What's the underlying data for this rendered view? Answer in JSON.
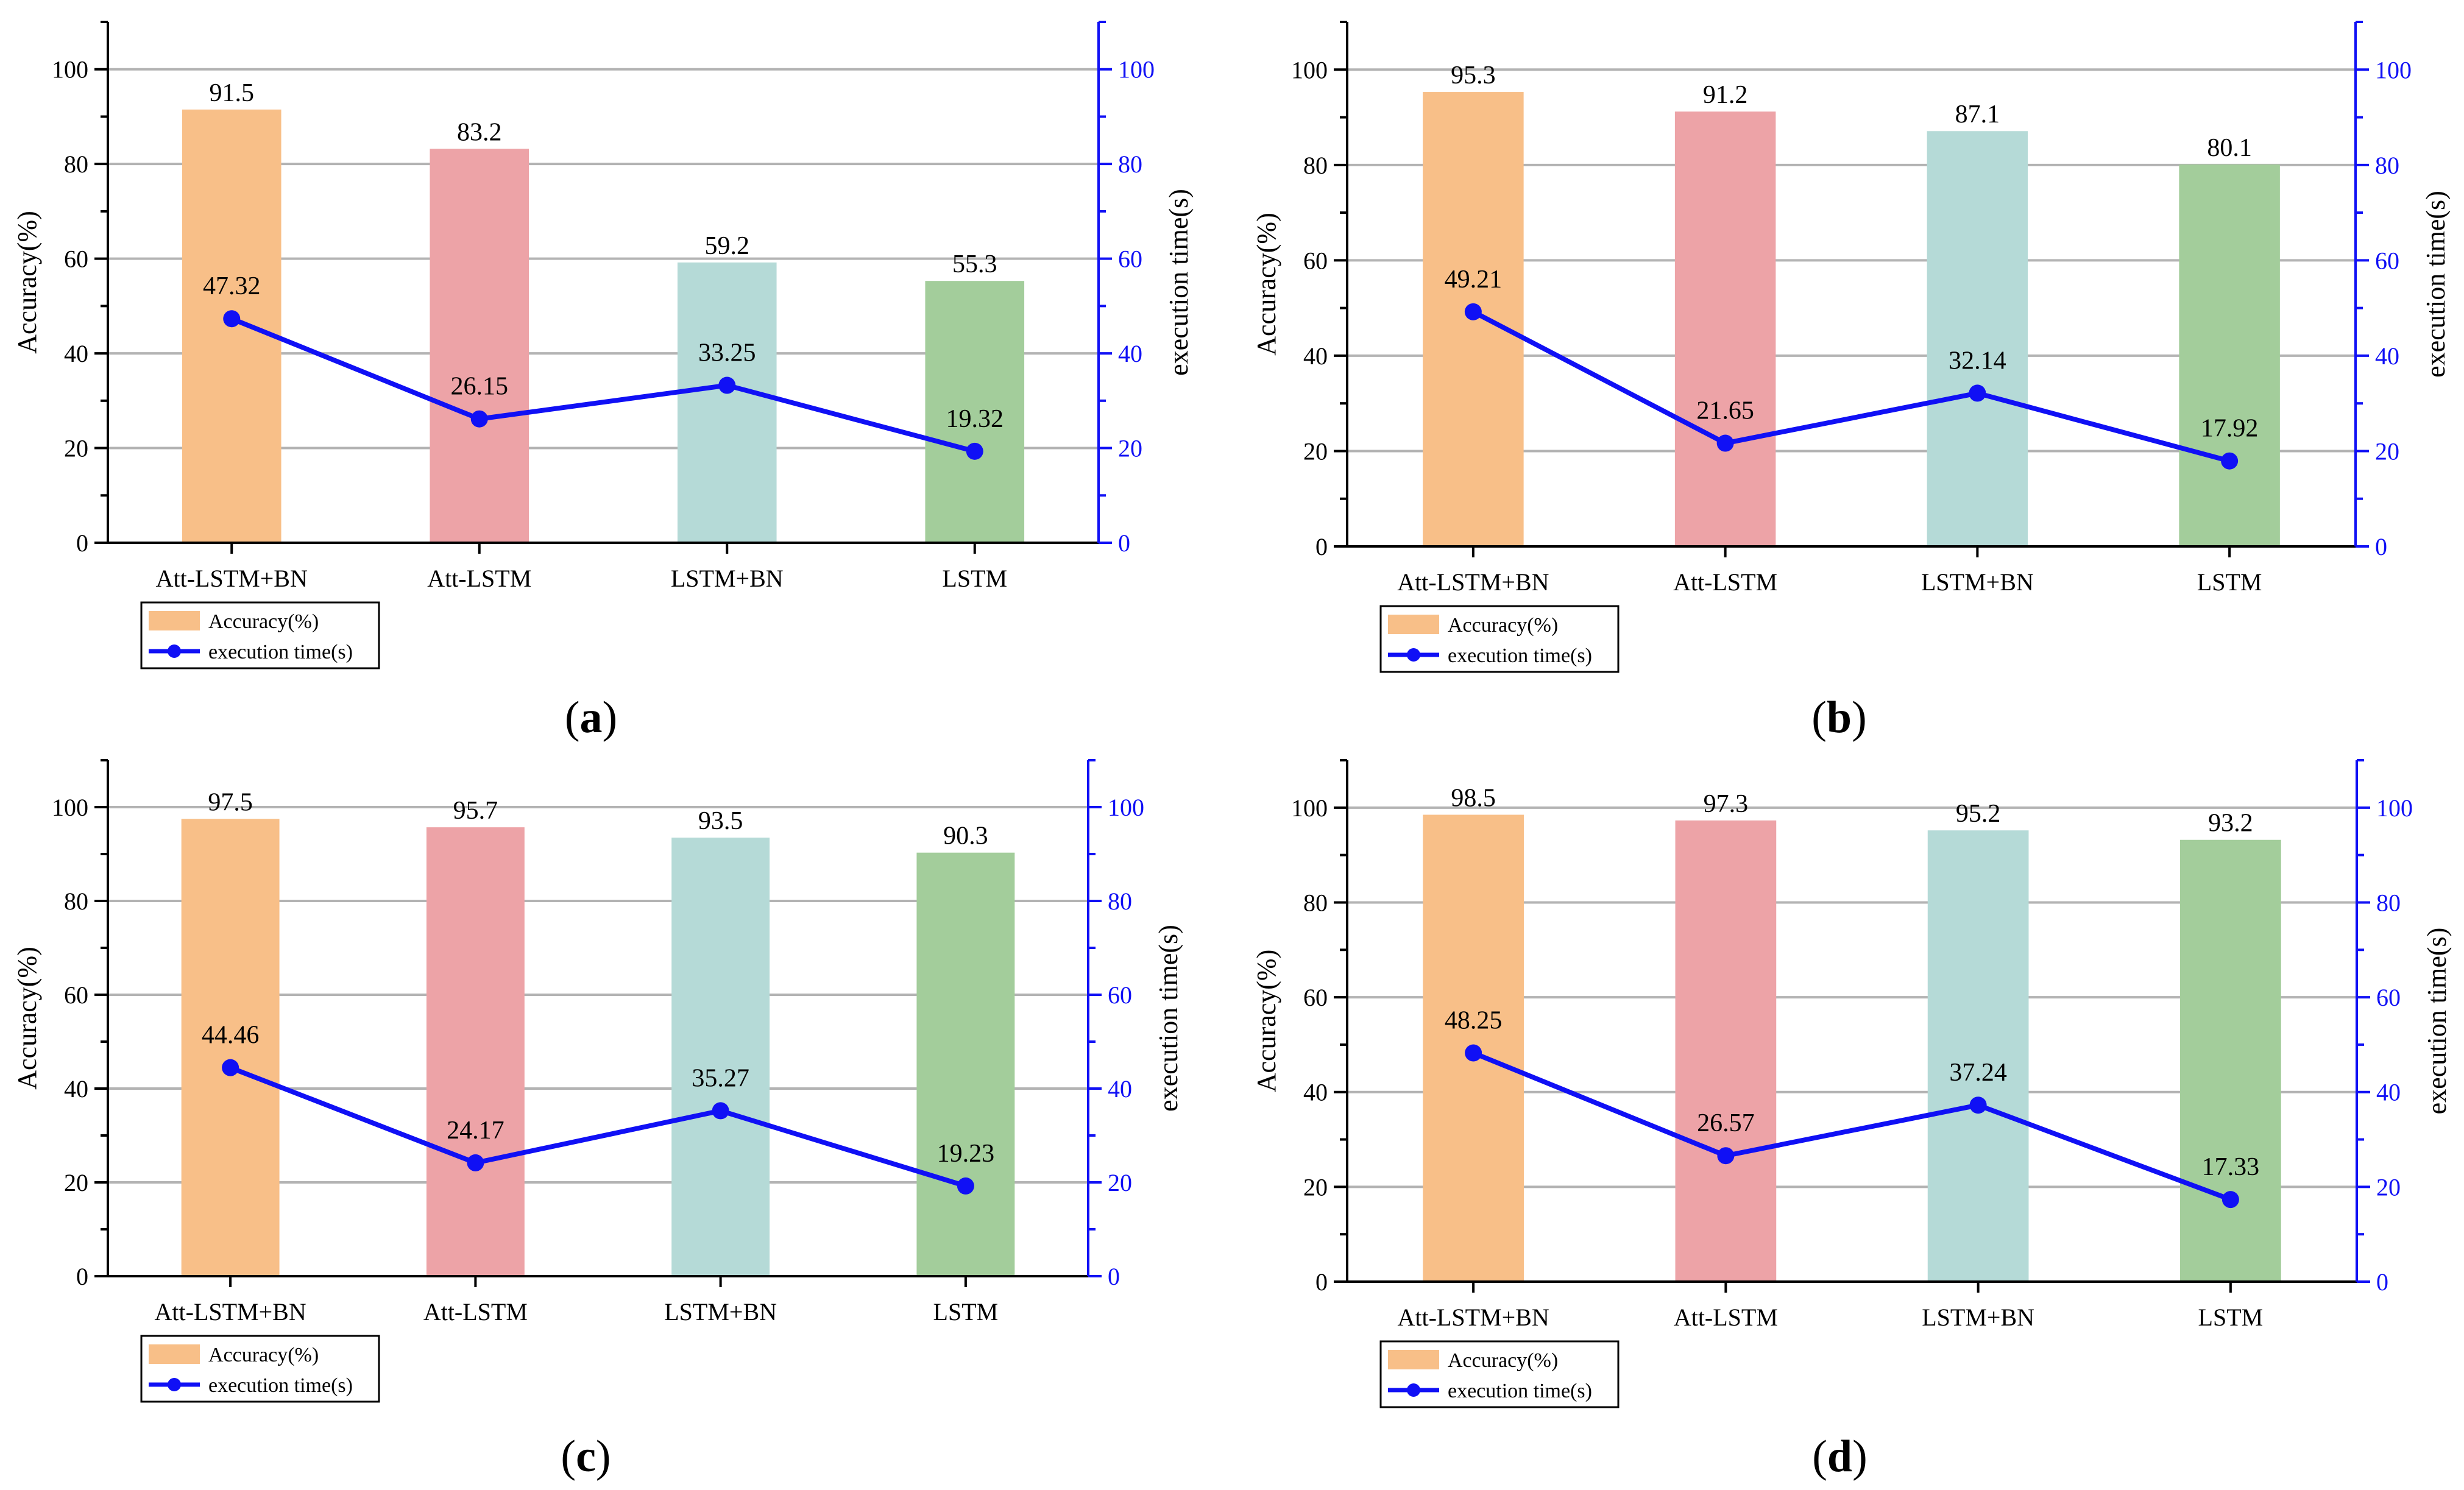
{
  "colors": {
    "bars": [
      "#f8bf88",
      "#eda3a7",
      "#b5dad7",
      "#a3cd9b"
    ],
    "line": "#1010f5",
    "right_axis": "#1010f5",
    "grid": "#b3b3b3"
  },
  "legend": {
    "accuracy": "Accuracy(%)",
    "execution": "execution time(s)"
  },
  "chart_data": [
    {
      "type": "bar",
      "panel": "(a)",
      "panel_open": "(",
      "panel_letter": "a",
      "panel_close": ")",
      "categories": [
        "Att-LSTM+BN",
        "Att-LSTM",
        "LSTM+BN",
        "LSTM"
      ],
      "series": [
        {
          "name": "Accuracy(%)",
          "axis": "left",
          "type": "bar",
          "values": [
            91.5,
            83.2,
            59.2,
            55.3
          ],
          "labels": [
            "91.5",
            "83.2",
            "59.2",
            "55.3"
          ]
        },
        {
          "name": "execution time(s)",
          "axis": "right",
          "type": "line",
          "values": [
            47.32,
            26.15,
            33.25,
            19.32
          ],
          "labels": [
            "47.32",
            "26.15",
            "33.25",
            "19.32"
          ]
        }
      ],
      "ylabel": "Accuracy(%)",
      "y2label": "execution time(s)",
      "ylim": [
        0,
        110
      ],
      "y2lim": [
        0,
        110
      ],
      "yticks": [
        0,
        20,
        40,
        60,
        80,
        100
      ],
      "y2ticks": [
        0,
        20,
        40,
        60,
        80,
        100
      ],
      "grid": true,
      "legend": "bottom-left"
    },
    {
      "type": "bar",
      "panel": "(b)",
      "panel_open": "(",
      "panel_letter": "b",
      "panel_close": ")",
      "categories": [
        "Att-LSTM+BN",
        "Att-LSTM",
        "LSTM+BN",
        "LSTM"
      ],
      "series": [
        {
          "name": "Accuracy(%)",
          "axis": "left",
          "type": "bar",
          "values": [
            95.3,
            91.2,
            87.1,
            80.1
          ],
          "labels": [
            "95.3",
            "91.2",
            "87.1",
            "80.1"
          ]
        },
        {
          "name": "execution time(s)",
          "axis": "right",
          "type": "line",
          "values": [
            49.21,
            21.65,
            32.14,
            17.92
          ],
          "labels": [
            "49.21",
            "21.65",
            "32.14",
            "17.92"
          ]
        }
      ],
      "ylabel": "Accuracy(%)",
      "y2label": "execution time(s)",
      "ylim": [
        0,
        110
      ],
      "y2lim": [
        0,
        110
      ],
      "yticks": [
        0,
        20,
        40,
        60,
        80,
        100
      ],
      "y2ticks": [
        0,
        20,
        40,
        60,
        80,
        100
      ],
      "grid": true,
      "legend": "bottom-left"
    },
    {
      "type": "bar",
      "panel": "(c)",
      "panel_open": "(",
      "panel_letter": "c",
      "panel_close": ")",
      "categories": [
        "Att-LSTM+BN",
        "Att-LSTM",
        "LSTM+BN",
        "LSTM"
      ],
      "series": [
        {
          "name": "Accuracy(%)",
          "axis": "left",
          "type": "bar",
          "values": [
            97.5,
            95.7,
            93.5,
            90.3
          ],
          "labels": [
            "97.5",
            "95.7",
            "93.5",
            "90.3"
          ]
        },
        {
          "name": "execution time(s)",
          "axis": "right",
          "type": "line",
          "values": [
            44.46,
            24.17,
            35.27,
            19.23
          ],
          "labels": [
            "44.46",
            "24.17",
            "35.27",
            "19.23"
          ]
        }
      ],
      "ylabel": "Accuracy(%)",
      "y2label": "execution time(s)",
      "ylim": [
        0,
        110
      ],
      "y2lim": [
        0,
        110
      ],
      "yticks": [
        0,
        20,
        40,
        60,
        80,
        100
      ],
      "y2ticks": [
        0,
        20,
        40,
        60,
        80,
        100
      ],
      "grid": true,
      "legend": "bottom-left"
    },
    {
      "type": "bar",
      "panel": "(d)",
      "panel_open": "(",
      "panel_letter": "d",
      "panel_close": ")",
      "categories": [
        "Att-LSTM+BN",
        "Att-LSTM",
        "LSTM+BN",
        "LSTM"
      ],
      "series": [
        {
          "name": "Accuracy(%)",
          "axis": "left",
          "type": "bar",
          "values": [
            98.5,
            97.3,
            95.2,
            93.2
          ],
          "labels": [
            "98.5",
            "97.3",
            "95.2",
            "93.2"
          ]
        },
        {
          "name": "execution time(s)",
          "axis": "right",
          "type": "line",
          "values": [
            48.25,
            26.57,
            37.24,
            17.33
          ],
          "labels": [
            "48.25",
            "26.57",
            "37.24",
            "17.33"
          ]
        }
      ],
      "ylabel": "Accuracy(%)",
      "y2label": "execution time(s)",
      "ylim": [
        0,
        110
      ],
      "y2lim": [
        0,
        110
      ],
      "yticks": [
        0,
        20,
        40,
        60,
        80,
        100
      ],
      "y2ticks": [
        0,
        20,
        40,
        60,
        80,
        100
      ],
      "grid": true,
      "legend": "bottom-left"
    }
  ]
}
